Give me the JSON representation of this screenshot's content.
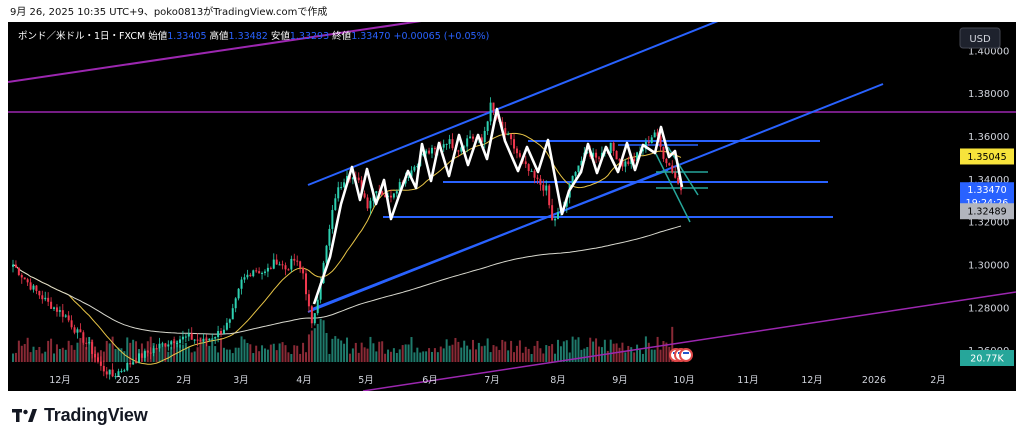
{
  "header": {
    "caption": "9月 26, 2025 10:35 UTC+9、poko0813がTradingView.comで作成"
  },
  "legend": {
    "symbol": "ポンド／米ドル・1日・FXCM",
    "open_label": "始値",
    "open": "1.33405",
    "high_label": "高値",
    "high": "1.33482",
    "low_label": "安値",
    "low": "1.33293",
    "close_label": "終値",
    "close": "1.33470",
    "change": "+0.00065 (+0.05%)"
  },
  "toolbar": {
    "currency_button": "USD"
  },
  "price_tags": {
    "upper": "1.35045",
    "last": "1.33470",
    "countdown": "19:24:26",
    "lower": "1.32489",
    "volume": "20.77K"
  },
  "brand": {
    "name": "TradingView"
  },
  "colors": {
    "background": "#000000",
    "candle_up": "#2ed1b1",
    "candle_down": "#f0384e",
    "channel": "#2962ff",
    "magenta_line": "#9c27b0",
    "zigzag": "#ffffff",
    "ma_short": "#e8c547",
    "ma_long": "#d9d9cf",
    "tag_yellow": "#f7e33b",
    "tag_blue": "#2962ff",
    "tag_gray": "#b2b5be",
    "tag_green": "#26a69a"
  },
  "chart_data": {
    "type": "candlestick",
    "y_axis": {
      "ticks": [
        "1.40000",
        "1.38000",
        "1.36000",
        "1.34000",
        "1.32000",
        "1.30000",
        "1.28000",
        "1.26000"
      ],
      "range": [
        1.2475,
        1.4095
      ]
    },
    "x_axis": {
      "ticks": [
        "12月",
        "2025",
        "2月",
        "3月",
        "4月",
        "5月",
        "6月",
        "7月",
        "8月",
        "9月",
        "10月",
        "11月",
        "12月",
        "2026",
        "2月"
      ]
    },
    "anchors": [
      {
        "i": 0,
        "p": 1.3
      },
      {
        "i": 6,
        "p": 1.29
      },
      {
        "i": 12,
        "p": 1.282
      },
      {
        "i": 18,
        "p": 1.276
      },
      {
        "i": 22,
        "p": 1.268
      },
      {
        "i": 26,
        "p": 1.262
      },
      {
        "i": 30,
        "p": 1.252
      },
      {
        "i": 34,
        "p": 1.248
      },
      {
        "i": 38,
        "p": 1.252
      },
      {
        "i": 42,
        "p": 1.256
      },
      {
        "i": 46,
        "p": 1.259
      },
      {
        "i": 50,
        "p": 1.262
      },
      {
        "i": 55,
        "p": 1.265
      },
      {
        "i": 60,
        "p": 1.266
      },
      {
        "i": 65,
        "p": 1.264
      },
      {
        "i": 70,
        "p": 1.268
      },
      {
        "i": 74,
        "p": 1.273
      },
      {
        "i": 78,
        "p": 1.292
      },
      {
        "i": 82,
        "p": 1.298
      },
      {
        "i": 86,
        "p": 1.296
      },
      {
        "i": 90,
        "p": 1.302
      },
      {
        "i": 93,
        "p": 1.298
      },
      {
        "i": 96,
        "p": 1.302
      },
      {
        "i": 99,
        "p": 1.296
      },
      {
        "i": 102,
        "p": 1.271
      },
      {
        "i": 106,
        "p": 1.3
      },
      {
        "i": 110,
        "p": 1.332
      },
      {
        "i": 114,
        "p": 1.343
      },
      {
        "i": 118,
        "p": 1.338
      },
      {
        "i": 121,
        "p": 1.328
      },
      {
        "i": 124,
        "p": 1.336
      },
      {
        "i": 128,
        "p": 1.331
      },
      {
        "i": 132,
        "p": 1.338
      },
      {
        "i": 136,
        "p": 1.344
      },
      {
        "i": 140,
        "p": 1.352
      },
      {
        "i": 144,
        "p": 1.353
      },
      {
        "i": 148,
        "p": 1.358
      },
      {
        "i": 152,
        "p": 1.354
      },
      {
        "i": 156,
        "p": 1.36
      },
      {
        "i": 160,
        "p": 1.357
      },
      {
        "i": 163,
        "p": 1.374
      },
      {
        "i": 166,
        "p": 1.365
      },
      {
        "i": 170,
        "p": 1.357
      },
      {
        "i": 174,
        "p": 1.347
      },
      {
        "i": 178,
        "p": 1.34
      },
      {
        "i": 182,
        "p": 1.335
      },
      {
        "i": 184,
        "p": 1.32
      },
      {
        "i": 188,
        "p": 1.327
      },
      {
        "i": 192,
        "p": 1.345
      },
      {
        "i": 196,
        "p": 1.352
      },
      {
        "i": 200,
        "p": 1.351
      },
      {
        "i": 204,
        "p": 1.355
      },
      {
        "i": 208,
        "p": 1.347
      },
      {
        "i": 212,
        "p": 1.349
      },
      {
        "i": 216,
        "p": 1.356
      },
      {
        "i": 219,
        "p": 1.362
      },
      {
        "i": 222,
        "p": 1.351
      },
      {
        "i": 225,
        "p": 1.344
      },
      {
        "i": 228,
        "p": 1.3347
      }
    ]
  }
}
